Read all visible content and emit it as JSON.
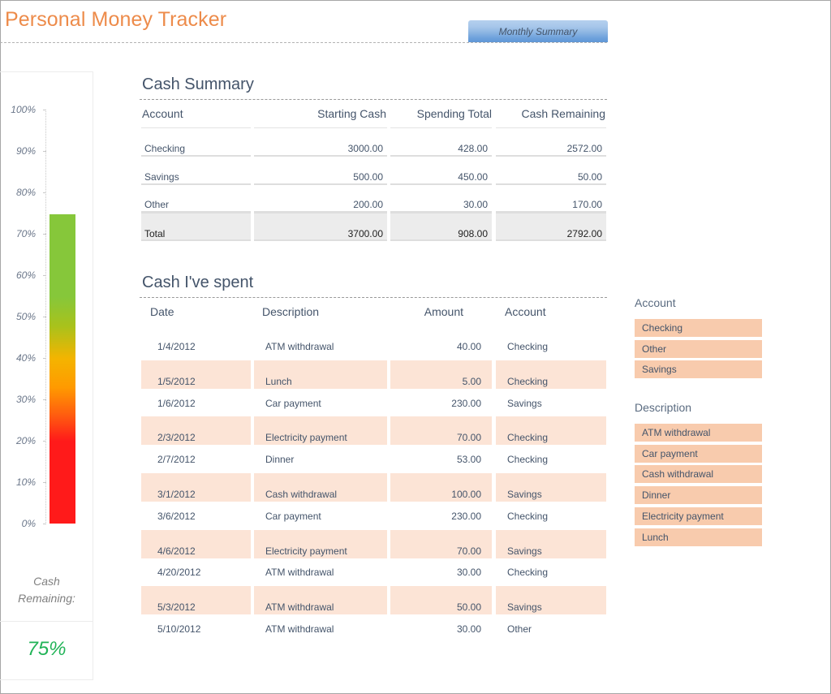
{
  "header": {
    "title": "Personal Money Tracker",
    "monthly_summary_button": "Monthly Summary"
  },
  "gauge": {
    "axis_labels": [
      "100%",
      "90%",
      "80%",
      "70%",
      "60%",
      "50%",
      "40%",
      "30%",
      "20%",
      "10%",
      "0%"
    ],
    "caption_line1": "Cash",
    "caption_line2": "Remaining:",
    "value": "75%",
    "colors": {
      "high": "#86c73a",
      "mid": "#f4b400",
      "low": "#ff1a1a",
      "value_text": "#21b357"
    }
  },
  "chart_data": {
    "type": "bar",
    "title": "Cash Remaining",
    "categories": [
      "Cash Remaining"
    ],
    "values": [
      75
    ],
    "ylabel": "",
    "xlabel": "",
    "ylim": [
      0,
      100
    ],
    "ytick_labels": [
      "0%",
      "10%",
      "20%",
      "30%",
      "40%",
      "50%",
      "60%",
      "70%",
      "80%",
      "90%",
      "100%"
    ],
    "grid": false,
    "legend": "none",
    "annotation": "Cash Remaining: 75%"
  },
  "cash_summary": {
    "title": "Cash Summary",
    "columns": [
      "Account",
      "Starting Cash",
      "Spending Total",
      "Cash Remaining"
    ],
    "rows": [
      {
        "account": "Checking",
        "starting": "3000.00",
        "spending": "428.00",
        "remaining": "2572.00"
      },
      {
        "account": "Savings",
        "starting": "500.00",
        "spending": "450.00",
        "remaining": "50.00"
      },
      {
        "account": "Other",
        "starting": "200.00",
        "spending": "30.00",
        "remaining": "170.00"
      }
    ],
    "total": {
      "account": "Total",
      "starting": "3700.00",
      "spending": "908.00",
      "remaining": "2792.00"
    }
  },
  "cash_spent": {
    "title": "Cash I've spent",
    "columns": [
      "Date",
      "Description",
      "Amount",
      "Account"
    ],
    "rows": [
      {
        "date": "1/4/2012",
        "description": "ATM withdrawal",
        "amount": "40.00",
        "account": "Checking"
      },
      {
        "date": "1/5/2012",
        "description": "Lunch",
        "amount": "5.00",
        "account": "Checking"
      },
      {
        "date": "1/6/2012",
        "description": "Car payment",
        "amount": "230.00",
        "account": "Savings"
      },
      {
        "date": "2/3/2012",
        "description": "Electricity payment",
        "amount": "70.00",
        "account": "Checking"
      },
      {
        "date": "2/7/2012",
        "description": "Dinner",
        "amount": "53.00",
        "account": "Checking"
      },
      {
        "date": "3/1/2012",
        "description": "Cash withdrawal",
        "amount": "100.00",
        "account": "Savings"
      },
      {
        "date": "3/6/2012",
        "description": "Car payment",
        "amount": "230.00",
        "account": "Checking"
      },
      {
        "date": "4/6/2012",
        "description": "Electricity payment",
        "amount": "70.00",
        "account": "Savings"
      },
      {
        "date": "4/20/2012",
        "description": "ATM withdrawal",
        "amount": "30.00",
        "account": "Checking"
      },
      {
        "date": "5/3/2012",
        "description": "ATM withdrawal",
        "amount": "50.00",
        "account": "Savings"
      },
      {
        "date": "5/10/2012",
        "description": "ATM withdrawal",
        "amount": "30.00",
        "account": "Other"
      }
    ]
  },
  "slicers": {
    "account": {
      "title": "Account",
      "items": [
        "Checking",
        "Other",
        "Savings"
      ]
    },
    "description": {
      "title": "Description",
      "items": [
        "ATM withdrawal",
        "Car payment",
        "Cash withdrawal",
        "Dinner",
        "Electricity payment",
        "Lunch"
      ]
    }
  }
}
